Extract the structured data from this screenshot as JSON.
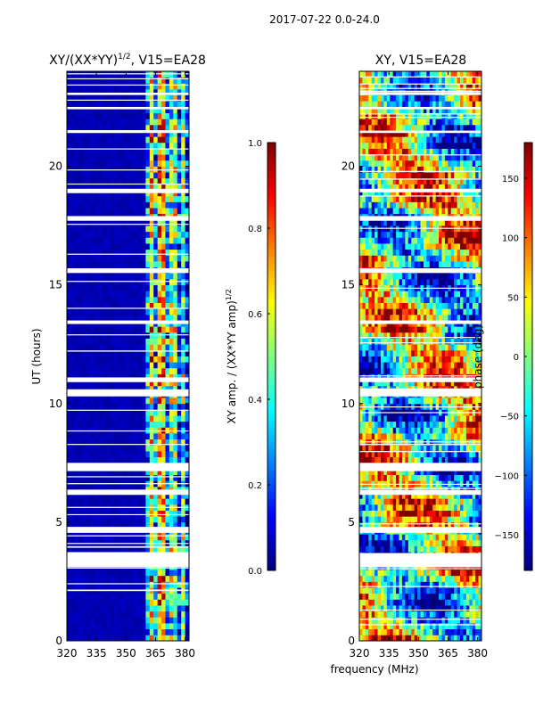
{
  "figure": {
    "suptitle": "2017-07-22 0.0-24.0",
    "shared_xlabel": "frequency (MHz)"
  },
  "colormap": {
    "name": "jet",
    "stops": [
      "#00007f",
      "#0000ff",
      "#0080ff",
      "#00ffff",
      "#80ff80",
      "#ffff00",
      "#ff8000",
      "#ff0000",
      "#7f0000"
    ]
  },
  "chart_data": [
    {
      "type": "heatmap",
      "title": "XY/(XX*YY)",
      "title_exp": "1/2",
      "title_rest": ", V15=EA28",
      "xlabel": "",
      "ylabel": "UT (hours)",
      "xlim": [
        320,
        382
      ],
      "ylim": [
        0,
        24
      ],
      "xticks": [
        320,
        335,
        350,
        365,
        380
      ],
      "yticks": [
        0,
        5,
        10,
        15,
        20
      ],
      "xtick_labels": [
        "320",
        "335",
        "350",
        "365",
        "380"
      ],
      "ytick_labels": [
        "0",
        "5",
        "10",
        "15",
        "20"
      ],
      "colorbar": {
        "label": "XY amp. / (XX*YY amp)",
        "label_exp": "1/2",
        "range": [
          0.0,
          1.0
        ],
        "ticks": [
          0.0,
          0.2,
          0.4,
          0.6,
          0.8,
          1.0
        ],
        "tick_labels": [
          "0.0",
          "0.2",
          "0.4",
          "0.6",
          "0.8",
          "1.0"
        ]
      },
      "value_bands": [
        {
          "from": 320,
          "to": 360,
          "level": 0.03
        },
        {
          "from": 360,
          "to": 362,
          "level": 0.3
        },
        {
          "from": 362,
          "to": 365,
          "level": 0.65
        },
        {
          "from": 365,
          "to": 367,
          "level": 0.35
        },
        {
          "from": 367,
          "to": 371,
          "level": 0.7
        },
        {
          "from": 371,
          "to": 373,
          "level": 0.3
        },
        {
          "from": 373,
          "to": 376,
          "level": 0.5
        },
        {
          "from": 376,
          "to": 378,
          "level": 0.2
        },
        {
          "from": 378,
          "to": 380,
          "level": 0.45
        },
        {
          "from": 380,
          "to": 382,
          "level": 0.15
        }
      ],
      "flagged_hours": [
        [
          3.1,
          3.7
        ],
        [
          4.55,
          4.8
        ],
        [
          6.15,
          6.35
        ],
        [
          7.15,
          7.5
        ],
        [
          10.3,
          10.6
        ],
        [
          10.9,
          11.1
        ],
        [
          13.35,
          13.5
        ],
        [
          15.5,
          15.7
        ],
        [
          17.7,
          17.9
        ],
        [
          18.9,
          19.05
        ],
        [
          21.4,
          21.5
        ],
        [
          22.4,
          22.5
        ],
        [
          23.0,
          23.1
        ]
      ]
    },
    {
      "type": "heatmap",
      "title": "XY, V15=EA28",
      "xlabel": "frequency (MHz)",
      "ylabel": "",
      "xlim": [
        320,
        382
      ],
      "ylim": [
        0,
        24
      ],
      "xticks": [
        320,
        335,
        350,
        365,
        380
      ],
      "yticks": [
        0,
        5,
        10,
        15,
        20
      ],
      "xtick_labels": [
        "320",
        "335",
        "350",
        "365",
        "380"
      ],
      "ytick_labels": [
        "0",
        "5",
        "10",
        "15",
        "20"
      ],
      "colorbar": {
        "label": "phase (deg)",
        "range": [
          -180,
          180
        ],
        "ticks": [
          -150,
          -100,
          -50,
          0,
          50,
          100,
          150
        ],
        "tick_labels": [
          "−150",
          "−100",
          "−50",
          "0",
          "50",
          "100",
          "150"
        ]
      },
      "flagged_hours": [
        [
          3.1,
          3.7
        ],
        [
          4.55,
          4.8
        ],
        [
          6.15,
          6.35
        ],
        [
          7.15,
          7.5
        ],
        [
          10.3,
          10.6
        ],
        [
          10.9,
          11.1
        ],
        [
          13.35,
          13.5
        ],
        [
          15.5,
          15.7
        ],
        [
          17.7,
          17.9
        ],
        [
          18.9,
          19.05
        ],
        [
          21.4,
          21.5
        ],
        [
          22.4,
          22.5
        ],
        [
          23.0,
          23.1
        ]
      ]
    }
  ]
}
